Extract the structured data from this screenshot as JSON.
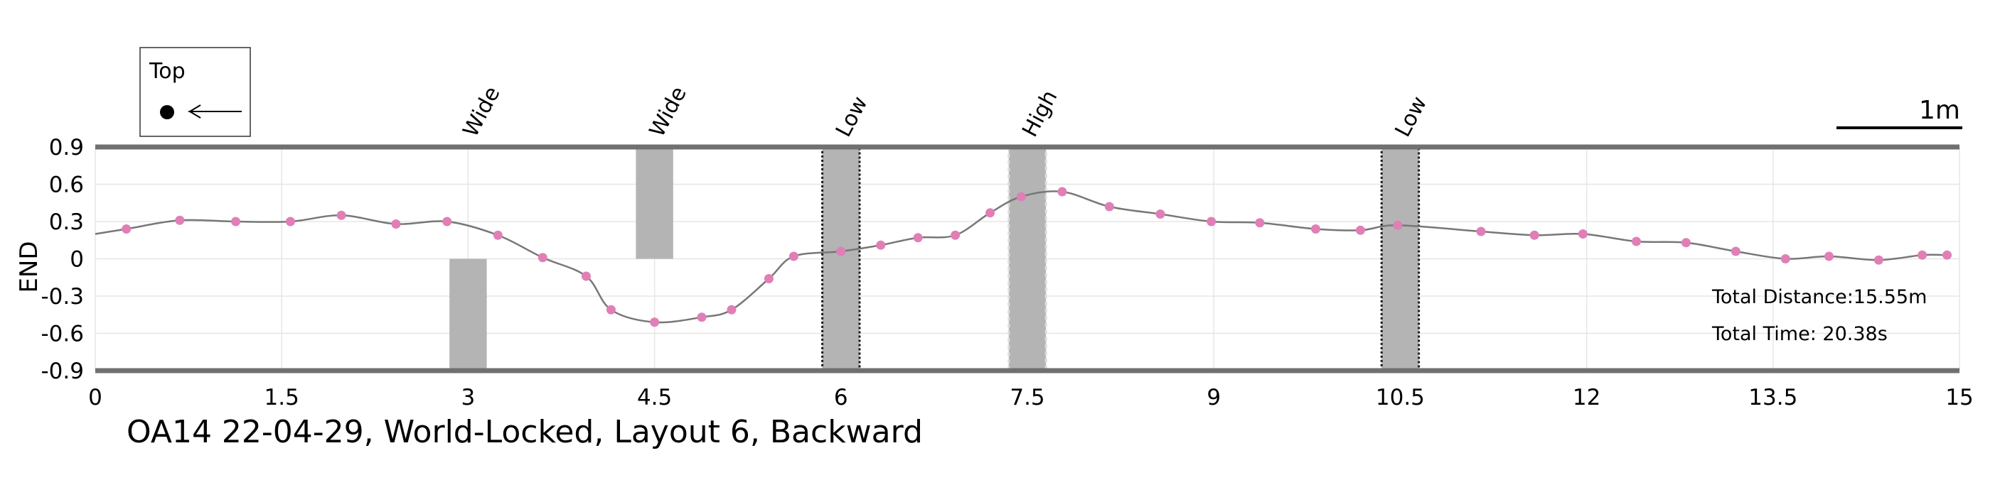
{
  "chart_data": {
    "type": "line",
    "title": "OA14 22-04-29, World-Locked, Layout 6, Backward",
    "xlabel": "",
    "ylabel": "END",
    "xlim": [
      0,
      15
    ],
    "ylim": [
      -0.9,
      0.9
    ],
    "xticks": [
      "0",
      "1.5",
      "3",
      "4.5",
      "6",
      "7.5",
      "9",
      "10.5",
      "12",
      "13.5",
      "15"
    ],
    "yticks": [
      "0.9",
      "0.6",
      "0.3",
      "0",
      "-0.3",
      "-0.6",
      "-0.9"
    ],
    "grid": true,
    "line_color": "#777777",
    "marker_color": "#e07fb6",
    "obstacle_color": "#b4b4b4",
    "series": [
      {
        "x": [
          0.25,
          0.68,
          1.13,
          1.57,
          1.98,
          2.42,
          2.83,
          3.24,
          3.6,
          3.95,
          4.15,
          4.5,
          4.88,
          5.12,
          5.42,
          5.62,
          6.0,
          6.32,
          6.62,
          6.92,
          7.2,
          7.45,
          7.78,
          8.16,
          8.57,
          8.98,
          9.37,
          9.82,
          10.18,
          10.48,
          11.15,
          11.58,
          11.97,
          12.4,
          12.8,
          13.2,
          13.6,
          13.95,
          14.35,
          14.7,
          14.9
        ],
        "y": [
          0.24,
          0.31,
          0.3,
          0.3,
          0.35,
          0.28,
          0.3,
          0.19,
          0.01,
          -0.14,
          -0.41,
          -0.51,
          -0.47,
          -0.41,
          -0.16,
          0.02,
          0.06,
          0.11,
          0.17,
          0.19,
          0.37,
          0.5,
          0.54,
          0.42,
          0.36,
          0.3,
          0.29,
          0.24,
          0.23,
          0.27,
          0.22,
          0.19,
          0.2,
          0.14,
          0.13,
          0.06,
          0.0,
          0.02,
          -0.01,
          0.03,
          0.03
        ]
      }
    ],
    "obstacles": [
      {
        "label": "Wide",
        "x0": 2.85,
        "x1": 3.15,
        "y0": -0.9,
        "y1": 0.0,
        "border": "none"
      },
      {
        "label": "Wide",
        "x0": 4.35,
        "x1": 4.65,
        "y0": 0.0,
        "y1": 0.9,
        "border": "none"
      },
      {
        "label": "Low",
        "x0": 5.85,
        "x1": 6.15,
        "y0": -0.9,
        "y1": 0.9,
        "border": "dotted-dark"
      },
      {
        "label": "High",
        "x0": 7.35,
        "x1": 7.65,
        "y0": -0.9,
        "y1": 0.9,
        "border": "dashed-light"
      },
      {
        "label": "Low",
        "x0": 10.35,
        "x1": 10.65,
        "y0": -0.9,
        "y1": 0.9,
        "border": "dotted-dark"
      }
    ],
    "annotations": {
      "distance": "Total Distance:15.55m",
      "time": "Total Time: 20.38s"
    },
    "legend": {
      "label": "Top"
    },
    "scale_bar_label": "1m"
  }
}
